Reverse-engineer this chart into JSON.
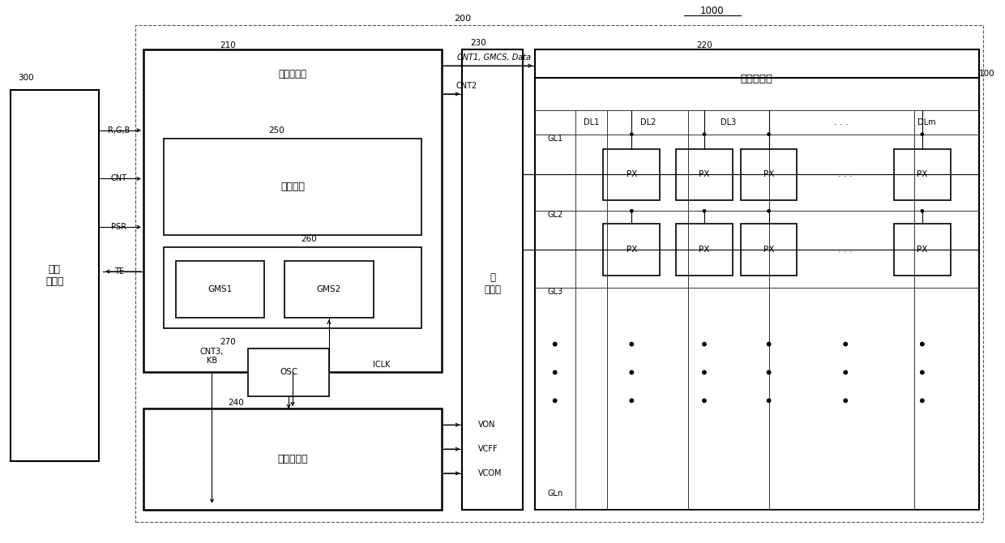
{
  "bg_color": "#f5f5f0",
  "title": "1000",
  "num_200": "200",
  "num_210": "210",
  "num_220": "220",
  "num_230": "230",
  "num_240": "240",
  "num_250": "250",
  "num_260": "260",
  "num_270": "270",
  "num_300": "300",
  "num_100": "100",
  "label_host": "主机\n控制器",
  "label_timing": "时序控制器",
  "label_frame": "帧存储器",
  "label_gms1": "GMS1",
  "label_gms2": "GMS2",
  "label_osc": "OSC",
  "label_voltage": "电压发生器",
  "label_gate": "栏\n驱动器",
  "label_data_driver": "数据驱动器",
  "sig_rgb": "R,G,B",
  "sig_cnt": "CNT",
  "sig_psr": "PSR",
  "sig_te": "TE",
  "sig_cnt1": "CNT1, GMCS, Data",
  "sig_cnt2": "CNT2",
  "sig_cnt3": "CNT3,\nKB",
  "sig_iclk": "ICLK",
  "sig_von": "VON",
  "sig_vcff": "VCFF",
  "sig_vcom": "VCOM",
  "dl_labels": [
    "DL1",
    "DL2",
    "DL3",
    "DLm"
  ],
  "gl_labels": [
    "GL1",
    "GL2",
    "GL3",
    "GLn"
  ]
}
